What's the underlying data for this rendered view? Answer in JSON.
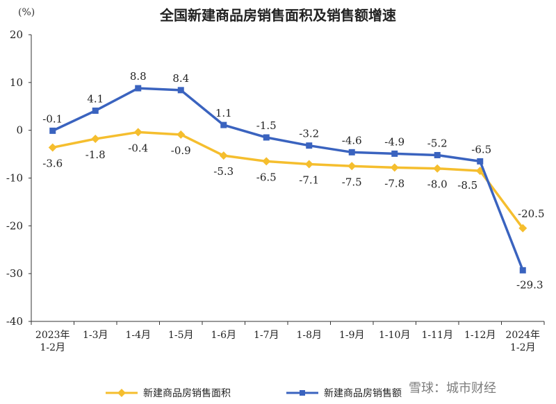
{
  "chart_data": {
    "type": "line",
    "title": "全国新建商品房销售面积及销售额增速",
    "ylabel": "(%)",
    "ylim": [
      -40,
      20
    ],
    "yticks": [
      20,
      10,
      0,
      -10,
      -20,
      -30,
      -40
    ],
    "grid": false,
    "legend_position": "bottom",
    "categories": [
      [
        "2023年",
        "1-2月"
      ],
      [
        "1-3月"
      ],
      [
        "1-4月"
      ],
      [
        "1-5月"
      ],
      [
        "1-6月"
      ],
      [
        "1-7月"
      ],
      [
        "1-8月"
      ],
      [
        "1-9月"
      ],
      [
        "1-10月"
      ],
      [
        "1-11月"
      ],
      [
        "1-12月"
      ],
      [
        "2024年",
        "1-2月"
      ]
    ],
    "series": [
      {
        "name": "新建商品房销售面积",
        "color": "#F5BE2E",
        "marker": "diamond",
        "values": [
          -3.6,
          -1.8,
          -0.4,
          -0.9,
          -5.3,
          -6.5,
          -7.1,
          -7.5,
          -7.8,
          -8.0,
          -8.5,
          -20.5
        ]
      },
      {
        "name": "新建商品房销售额",
        "color": "#3A63BF",
        "marker": "square",
        "values": [
          -0.1,
          4.1,
          8.8,
          8.4,
          1.1,
          -1.5,
          -3.2,
          -4.6,
          -4.9,
          -5.2,
          -6.5,
          -29.3
        ]
      }
    ]
  },
  "watermark": "雪球：城市财经"
}
